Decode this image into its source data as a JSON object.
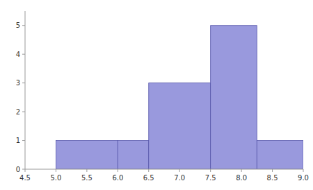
{
  "chart_data": {
    "type": "histogram",
    "bins": [
      5,
      6,
      6.5,
      7.5,
      8.25,
      9
    ],
    "values": [
      1,
      1,
      3,
      5,
      1
    ],
    "color": "#9999dd",
    "xlim": [
      4.5,
      9
    ],
    "ylim": [
      0,
      5.5
    ],
    "xticks": [
      4.5,
      {
        "value": 5,
        "label": "5.0"
      },
      5.5,
      {
        "value": 6,
        "label": "6.0"
      },
      6.5,
      {
        "value": 7,
        "label": "7.0"
      },
      7.5,
      {
        "value": 8,
        "label": "8.0"
      },
      8.5,
      {
        "value": 9,
        "label": "9.0"
      }
    ],
    "yticks": [
      0,
      1,
      2,
      3,
      4,
      5
    ],
    "grid": false
  }
}
